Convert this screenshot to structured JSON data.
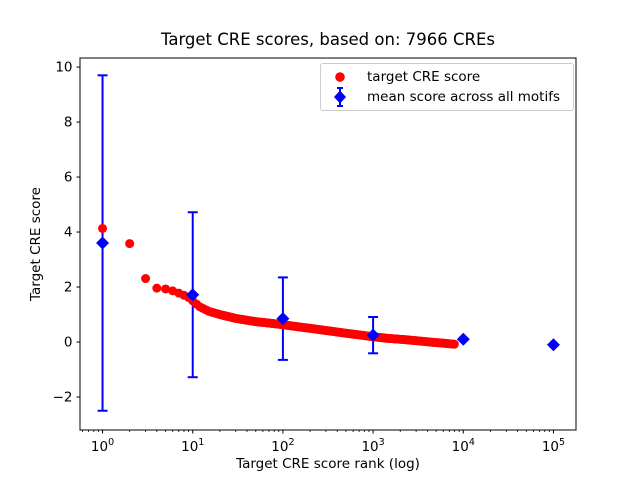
{
  "chart_data": {
    "type": "scatter",
    "title": "Target CRE scores, based on: 7966 CREs",
    "xlabel": "Target CRE score rank (log)",
    "ylabel": "Target CRE score",
    "x_scale": "log",
    "x_tick_exponents": [
      0,
      1,
      2,
      3,
      4,
      5
    ],
    "y_ticks": [
      -2,
      0,
      2,
      4,
      6,
      8,
      10
    ],
    "xlim_log10": [
      -0.25,
      5.25
    ],
    "ylim": [
      -3.2,
      10.33
    ],
    "grid": false,
    "n_cres": 7966,
    "colors": {
      "target": "#ff0000",
      "mean": "#0000ff"
    },
    "series": [
      {
        "name": "target CRE score",
        "marker": "circle",
        "color": "#ff0000",
        "n_points": 7966,
        "anchors": [
          [
            1,
            4.13
          ],
          [
            2,
            3.58
          ],
          [
            3,
            2.31
          ],
          [
            4,
            1.96
          ],
          [
            5,
            1.93
          ],
          [
            6,
            1.86
          ],
          [
            7,
            1.78
          ],
          [
            8,
            1.7
          ],
          [
            9,
            1.62
          ],
          [
            10,
            1.5
          ],
          [
            11,
            1.38
          ],
          [
            12,
            1.28
          ],
          [
            15,
            1.12
          ],
          [
            20,
            1.0
          ],
          [
            30,
            0.86
          ],
          [
            50,
            0.74
          ],
          [
            70,
            0.69
          ],
          [
            100,
            0.63
          ],
          [
            150,
            0.55
          ],
          [
            200,
            0.5
          ],
          [
            300,
            0.42
          ],
          [
            500,
            0.32
          ],
          [
            700,
            0.26
          ],
          [
            1000,
            0.19
          ],
          [
            1500,
            0.13
          ],
          [
            2000,
            0.1
          ],
          [
            3000,
            0.05
          ],
          [
            4000,
            0.01
          ],
          [
            5000,
            -0.02
          ],
          [
            6000,
            -0.04
          ],
          [
            7966,
            -0.08
          ]
        ]
      },
      {
        "name": "mean score across all motifs",
        "marker": "diamond",
        "color": "#0000ff",
        "ranks": [
          1,
          10,
          100,
          1000,
          10000,
          100000
        ],
        "means": [
          3.6,
          1.72,
          0.85,
          0.25,
          0.1,
          -0.1
        ],
        "errors": [
          6.1,
          3.0,
          1.5,
          0.66,
          0.05,
          0.05
        ]
      }
    ],
    "legend": {
      "position": "upper right",
      "entries": [
        {
          "label": "target CRE score",
          "marker": "circle",
          "color": "#ff0000"
        },
        {
          "label": "mean score across all motifs",
          "marker": "diamond-errorbar",
          "color": "#0000ff"
        }
      ]
    }
  }
}
